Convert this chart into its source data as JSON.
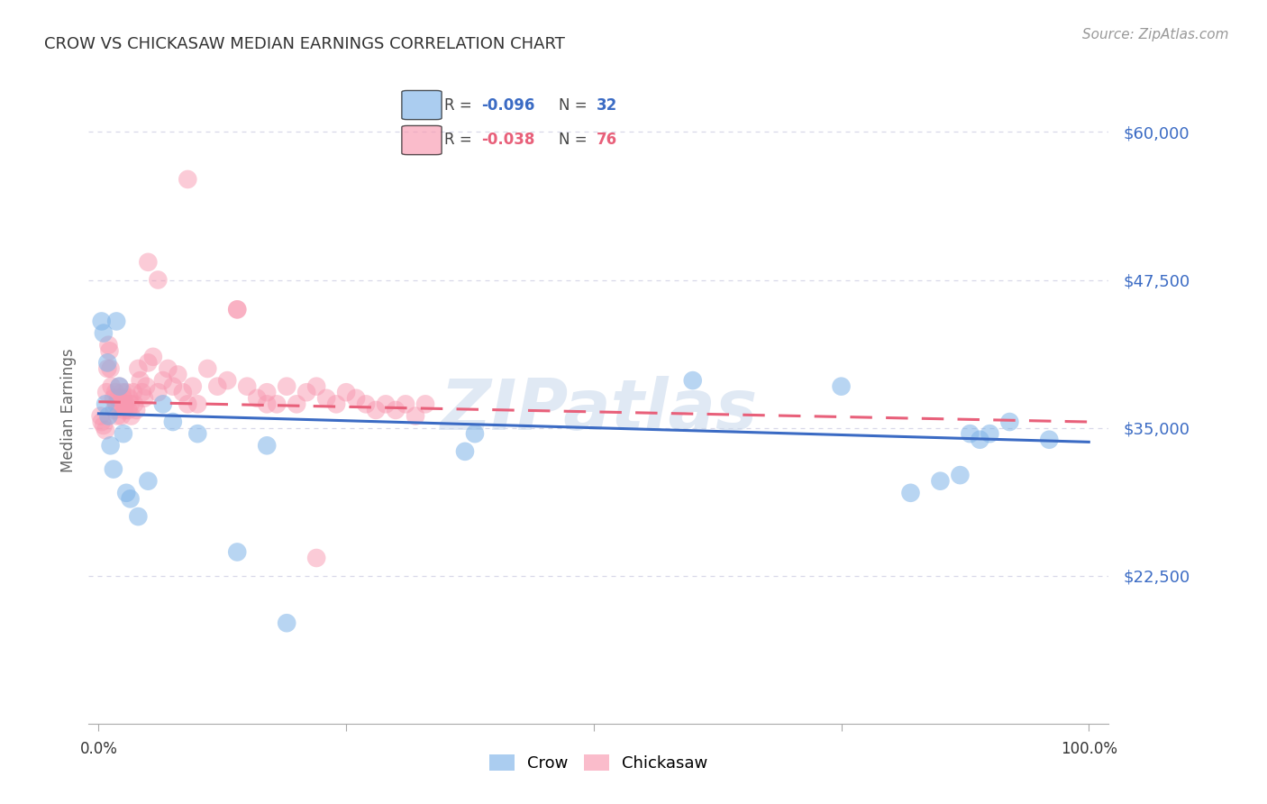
{
  "title": "CROW VS CHICKASAW MEDIAN EARNINGS CORRELATION CHART",
  "source": "Source: ZipAtlas.com",
  "ylabel": "Median Earnings",
  "y_ticks": [
    22500,
    35000,
    47500,
    60000
  ],
  "y_tick_labels": [
    "$22,500",
    "$35,000",
    "$47,500",
    "$60,000"
  ],
  "y_min": 10000,
  "y_max": 63000,
  "x_min": -0.01,
  "x_max": 1.02,
  "watermark": "ZIPatlas",
  "crow_color": "#7EB3E8",
  "chickasaw_color": "#F898B0",
  "crow_line_color": "#3B6BC4",
  "chickasaw_line_color": "#E8607A",
  "background_color": "#FFFFFF",
  "grid_color": "#D8D8E8",
  "crow_x": [
    0.003,
    0.005,
    0.007,
    0.009,
    0.01,
    0.012,
    0.015,
    0.018,
    0.021,
    0.025,
    0.028,
    0.032,
    0.04,
    0.05,
    0.065,
    0.075,
    0.1,
    0.14,
    0.17,
    0.19,
    0.37,
    0.38,
    0.6,
    0.75,
    0.82,
    0.85,
    0.87,
    0.88,
    0.89,
    0.9,
    0.92,
    0.96
  ],
  "crow_y": [
    44000,
    43000,
    37000,
    40500,
    36000,
    33500,
    31500,
    44000,
    38500,
    34500,
    29500,
    29000,
    27500,
    30500,
    37000,
    35500,
    34500,
    24500,
    33500,
    18500,
    33000,
    34500,
    39000,
    38500,
    29500,
    30500,
    31000,
    34500,
    34000,
    34500,
    35500,
    34000
  ],
  "chick_x": [
    0.002,
    0.003,
    0.005,
    0.007,
    0.008,
    0.009,
    0.01,
    0.011,
    0.012,
    0.013,
    0.015,
    0.016,
    0.017,
    0.018,
    0.019,
    0.02,
    0.021,
    0.022,
    0.023,
    0.024,
    0.025,
    0.026,
    0.027,
    0.028,
    0.03,
    0.031,
    0.032,
    0.033,
    0.035,
    0.036,
    0.038,
    0.04,
    0.042,
    0.044,
    0.046,
    0.048,
    0.05,
    0.055,
    0.06,
    0.065,
    0.07,
    0.075,
    0.08,
    0.085,
    0.09,
    0.095,
    0.1,
    0.11,
    0.12,
    0.13,
    0.14,
    0.15,
    0.16,
    0.17,
    0.18,
    0.19,
    0.2,
    0.21,
    0.22,
    0.23,
    0.24,
    0.25,
    0.26,
    0.27,
    0.28,
    0.29,
    0.3,
    0.31,
    0.32,
    0.33,
    0.09,
    0.05,
    0.06,
    0.14,
    0.22,
    0.17
  ],
  "chick_y": [
    36000,
    35500,
    35200,
    34800,
    38000,
    40000,
    42000,
    41500,
    40000,
    38500,
    37500,
    36500,
    38000,
    37000,
    36000,
    37500,
    38500,
    37000,
    36000,
    38000,
    37500,
    36500,
    37000,
    38000,
    36500,
    37500,
    37000,
    36000,
    38000,
    37000,
    36500,
    40000,
    39000,
    38000,
    37500,
    38500,
    40500,
    41000,
    38000,
    39000,
    40000,
    38500,
    39500,
    38000,
    37000,
    38500,
    37000,
    40000,
    38500,
    39000,
    45000,
    38500,
    37500,
    38000,
    37000,
    38500,
    37000,
    38000,
    38500,
    37500,
    37000,
    38000,
    37500,
    37000,
    36500,
    37000,
    36500,
    37000,
    36000,
    37000,
    56000,
    49000,
    47500,
    45000,
    24000,
    37000
  ]
}
